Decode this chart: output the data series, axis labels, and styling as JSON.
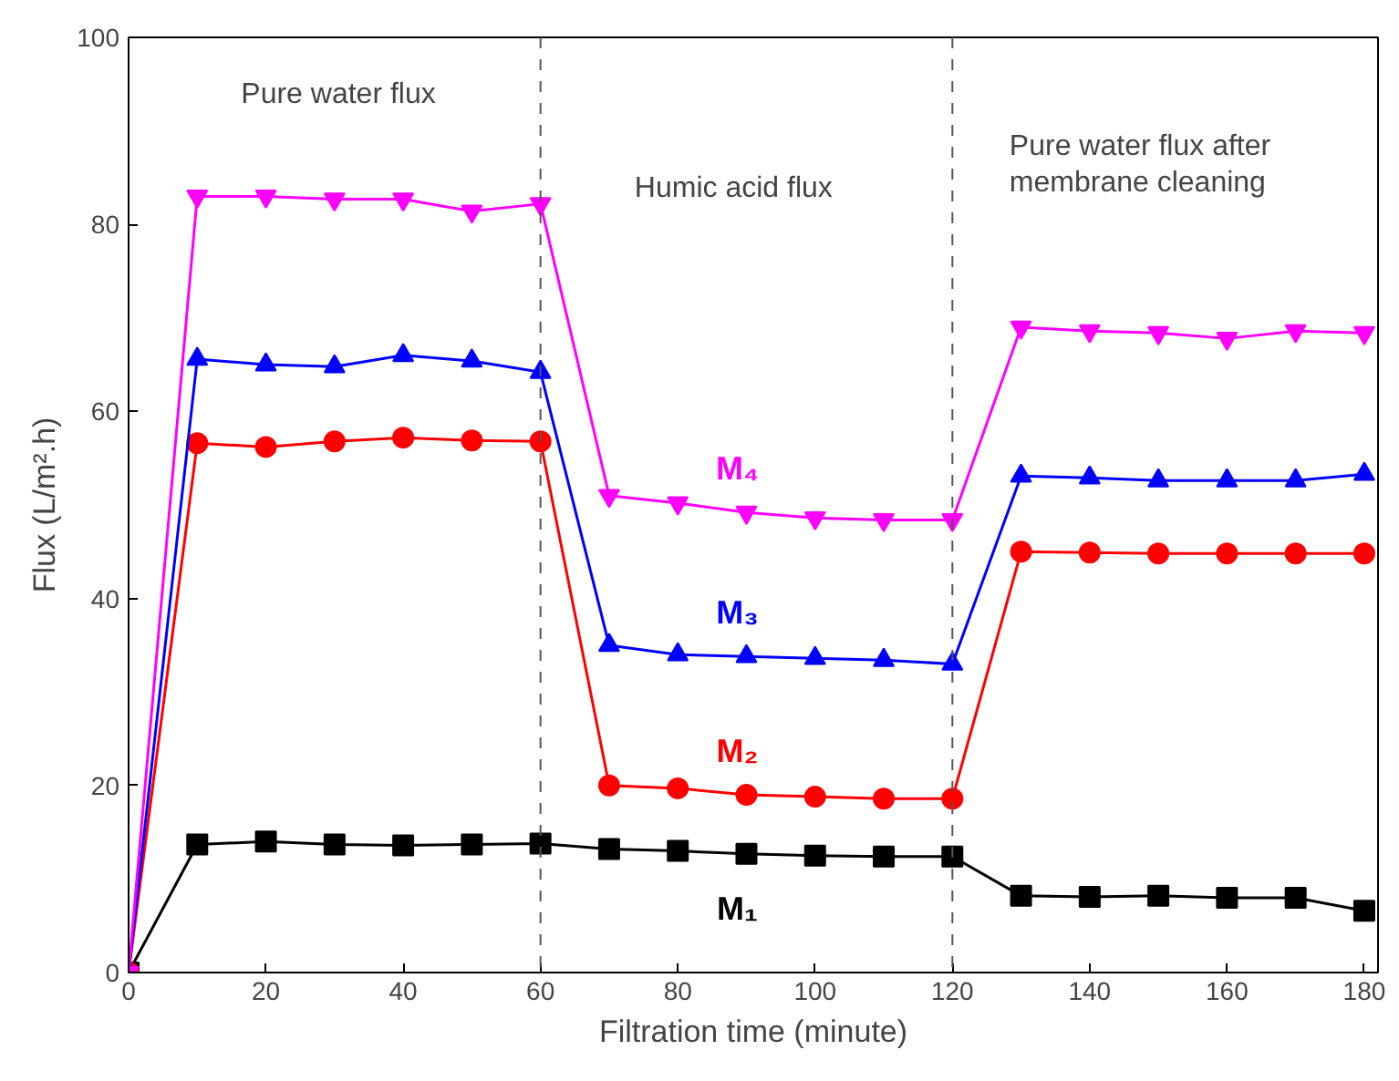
{
  "chart_data": {
    "type": "line",
    "xlabel": "Filtration time (minute)",
    "ylabel": "Flux (L/m².h)",
    "x": [
      0,
      10,
      20,
      30,
      40,
      50,
      60,
      70,
      80,
      90,
      100,
      110,
      120,
      130,
      140,
      150,
      160,
      170,
      180
    ],
    "series": [
      {
        "name": "M₁",
        "color": "#000000",
        "marker": "square",
        "values": [
          0,
          13.7,
          14,
          13.7,
          13.6,
          13.7,
          13.8,
          13.2,
          13,
          12.7,
          12.5,
          12.4,
          12.4,
          8.2,
          8.1,
          8.2,
          8,
          8,
          6.6
        ]
      },
      {
        "name": "M₂",
        "color": "#ff0000",
        "marker": "circle",
        "values": [
          0,
          56.6,
          56.2,
          56.8,
          57.2,
          56.9,
          56.8,
          20,
          19.7,
          19,
          18.8,
          18.6,
          18.6,
          45,
          44.9,
          44.8,
          44.8,
          44.8,
          44.8
        ]
      },
      {
        "name": "M₃",
        "color": "#0000ff",
        "marker": "triangle",
        "values": [
          0,
          65.6,
          65,
          64.8,
          66,
          65.4,
          64.2,
          35,
          34,
          33.8,
          33.6,
          33.4,
          33,
          53.1,
          52.9,
          52.6,
          52.6,
          52.6,
          53.3
        ]
      },
      {
        "name": "M₄",
        "color": "#ff00ff",
        "marker": "triangle",
        "values": [
          0,
          83,
          83,
          82.7,
          82.7,
          81.4,
          82.2,
          51,
          50.2,
          49.2,
          48.6,
          48.4,
          48.4,
          69,
          68.6,
          68.4,
          67.8,
          68.6,
          68.4
        ]
      }
    ],
    "xlim": [
      0,
      182
    ],
    "ylim": [
      0,
      100
    ],
    "xticks": [
      0,
      20,
      40,
      60,
      80,
      100,
      120,
      140,
      160,
      180
    ],
    "yticks": [
      0,
      20,
      40,
      60,
      80,
      100
    ],
    "ref_lines": [
      {
        "axis": "x",
        "value": 60,
        "line_style": "dashed",
        "color": "#555555"
      },
      {
        "axis": "x",
        "value": 120,
        "line_style": "dashed",
        "color": "#555555"
      }
    ],
    "annotations": [
      "Pure water flux",
      "Humic acid flux",
      "Pure water flux after\nmembrane cleaning"
    ],
    "grid": false,
    "line_style": "solid"
  }
}
